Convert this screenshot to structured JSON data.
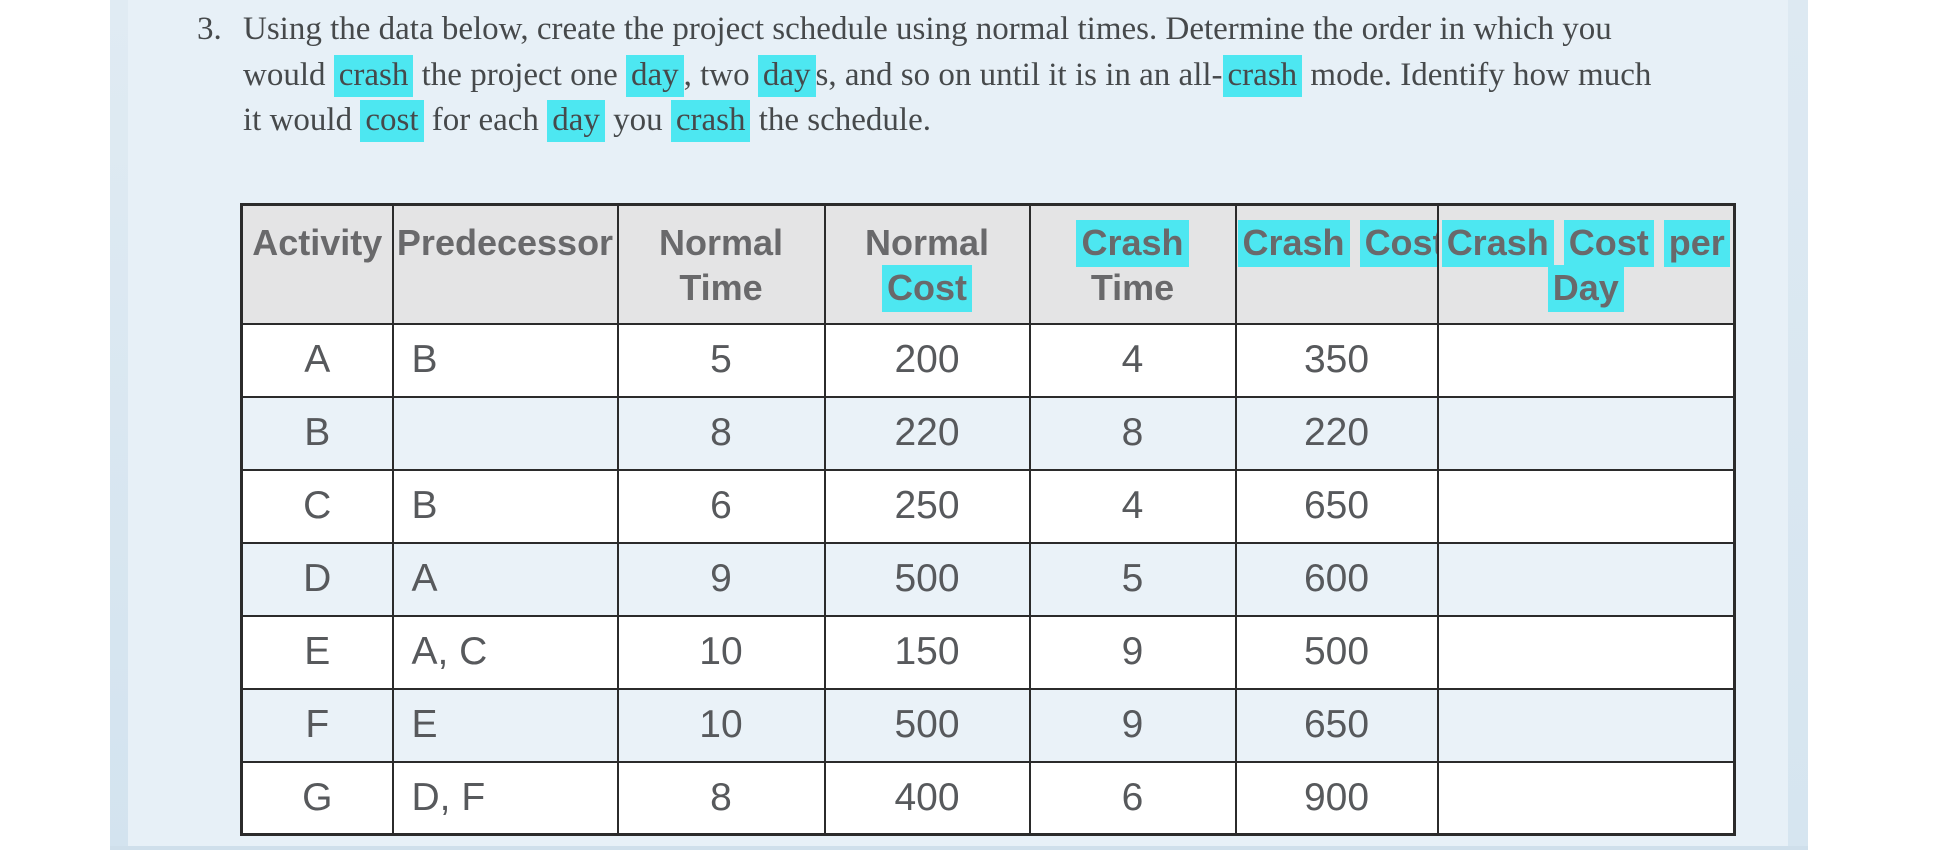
{
  "question": {
    "number": "3.",
    "lines": [
      [
        {
          "t": "Using the data below, create the project schedule using normal times. Determine the order in which you"
        }
      ],
      [
        {
          "t": "would "
        },
        {
          "t": "crash",
          "h": true
        },
        {
          "t": " the project one "
        },
        {
          "t": "day",
          "h": true
        },
        {
          "t": ", two "
        },
        {
          "t": "day",
          "h": true
        },
        {
          "t": "s, and so on until it is in an all-"
        },
        {
          "t": "crash",
          "h": true
        },
        {
          "t": " mode. Identify how much"
        }
      ],
      [
        {
          "t": "it would "
        },
        {
          "t": "cost",
          "h": true
        },
        {
          "t": " for each "
        },
        {
          "t": "day",
          "h": true
        },
        {
          "t": " you "
        },
        {
          "t": "crash",
          "h": true
        },
        {
          "t": " the schedule."
        }
      ]
    ]
  },
  "table": {
    "headers": [
      {
        "name": "activity",
        "lines": [
          [
            {
              "t": "Activity"
            }
          ]
        ]
      },
      {
        "name": "predecessor",
        "lines": [
          [
            {
              "t": "Predecessor"
            }
          ]
        ]
      },
      {
        "name": "normal-time",
        "lines": [
          [
            {
              "t": "Normal"
            }
          ],
          [
            {
              "t": "Time"
            }
          ]
        ]
      },
      {
        "name": "normal-cost",
        "lines": [
          [
            {
              "t": "Normal"
            }
          ],
          [
            {
              "t": "Cost",
              "h": true
            }
          ]
        ]
      },
      {
        "name": "crash-time",
        "lines": [
          [
            {
              "t": "Crash",
              "h": true
            }
          ],
          [
            {
              "t": "Time"
            }
          ]
        ]
      },
      {
        "name": "crash-cost",
        "lines": [
          [
            {
              "t": "Crash",
              "h": true
            },
            {
              "t": " "
            },
            {
              "t": "Cost",
              "h": true
            }
          ]
        ]
      },
      {
        "name": "crash-cost-per-day",
        "lines": [
          [
            {
              "t": "Crash",
              "h": true
            },
            {
              "t": " "
            },
            {
              "t": "Cost",
              "h": true
            },
            {
              "t": " "
            },
            {
              "t": "per",
              "h": true
            }
          ],
          [
            {
              "t": "Day",
              "h": true
            }
          ]
        ]
      }
    ],
    "rows": [
      {
        "activity": "A",
        "predecessor": "B",
        "normal_time": "5",
        "normal_cost": "200",
        "crash_time": "4",
        "crash_cost": "350",
        "crash_cost_per_day": ""
      },
      {
        "activity": "B",
        "predecessor": "",
        "normal_time": "8",
        "normal_cost": "220",
        "crash_time": "8",
        "crash_cost": "220",
        "crash_cost_per_day": ""
      },
      {
        "activity": "C",
        "predecessor": "B",
        "normal_time": "6",
        "normal_cost": "250",
        "crash_time": "4",
        "crash_cost": "650",
        "crash_cost_per_day": ""
      },
      {
        "activity": "D",
        "predecessor": "A",
        "normal_time": "9",
        "normal_cost": "500",
        "crash_time": "5",
        "crash_cost": "600",
        "crash_cost_per_day": ""
      },
      {
        "activity": "E",
        "predecessor": "A, C",
        "normal_time": "10",
        "normal_cost": "150",
        "crash_time": "9",
        "crash_cost": "500",
        "crash_cost_per_day": ""
      },
      {
        "activity": "F",
        "predecessor": "E",
        "normal_time": "10",
        "normal_cost": "500",
        "crash_time": "9",
        "crash_cost": "650",
        "crash_cost_per_day": ""
      },
      {
        "activity": "G",
        "predecessor": "D, F",
        "normal_time": "8",
        "normal_cost": "400",
        "crash_time": "6",
        "crash_cost": "900",
        "crash_cost_per_day": ""
      }
    ]
  },
  "colors": {
    "highlight": "#4de7f1",
    "page_bg": "#e7f0f7",
    "page_edge": "#d9e7f2",
    "header_bg": "#e4e4e5",
    "alt_row_bg": "#eaf2f8",
    "border": "#2b2b2b",
    "body_text": "#57595c",
    "header_text": "#69696b",
    "question_text": "#46494b"
  }
}
